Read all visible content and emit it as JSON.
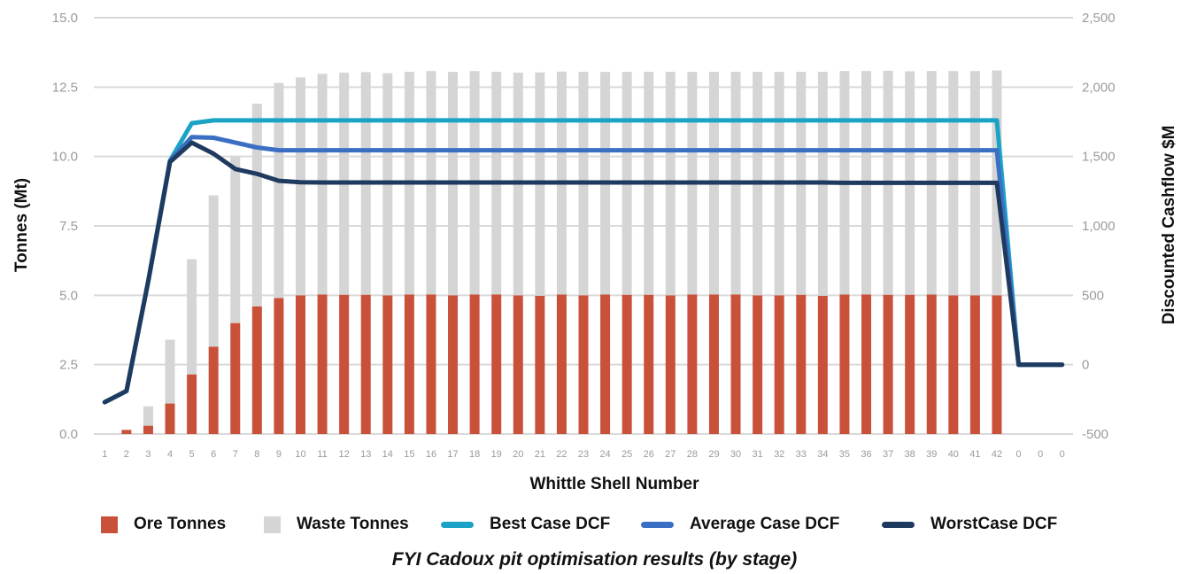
{
  "caption": "FYI Cadoux pit optimisation results (by stage)",
  "chart_data": {
    "type": "bar",
    "xlabel": "Whittle Shell Number",
    "ylabel": "Tonnes (Mt)",
    "y2label": "Discounted Cashflow $M",
    "ylim": [
      0,
      15
    ],
    "y2lim": [
      -500,
      2500
    ],
    "yticks": [
      "0.0",
      "2.5",
      "5.0",
      "7.5",
      "10.0",
      "12.5",
      "15.0"
    ],
    "y2ticks": [
      "-500",
      "0",
      "500",
      "1,000",
      "1,500",
      "2,000",
      "2,500"
    ],
    "grid": true,
    "legend_position": "bottom",
    "stacked": true,
    "categories": [
      "1",
      "2",
      "3",
      "4",
      "5",
      "6",
      "7",
      "8",
      "9",
      "10",
      "11",
      "12",
      "13",
      "14",
      "15",
      "16",
      "17",
      "18",
      "19",
      "20",
      "21",
      "22",
      "23",
      "24",
      "25",
      "26",
      "27",
      "28",
      "29",
      "30",
      "31",
      "32",
      "33",
      "34",
      "35",
      "36",
      "37",
      "38",
      "39",
      "40",
      "41",
      "42",
      "0",
      "0",
      "0"
    ],
    "series": [
      {
        "name": "Ore Tonnes",
        "kind": "bar",
        "axis": "left",
        "color": "#c9513a",
        "values": [
          0,
          0.15,
          0.3,
          1.1,
          2.15,
          3.15,
          4.0,
          4.6,
          4.9,
          5.0,
          5.03,
          5.02,
          5.02,
          5.0,
          5.03,
          5.03,
          5.0,
          5.03,
          5.03,
          5.0,
          4.98,
          5.03,
          5.0,
          5.03,
          5.02,
          5.02,
          5.0,
          5.03,
          5.03,
          5.03,
          5.0,
          5.0,
          5.02,
          4.98,
          5.03,
          5.03,
          5.02,
          5.02,
          5.03,
          5.0,
          5.0,
          5.0,
          0,
          0,
          0
        ]
      },
      {
        "name": "Waste Tonnes",
        "kind": "bar",
        "axis": "left",
        "color": "#d5d5d5",
        "values": [
          0,
          0,
          0.7,
          2.3,
          4.15,
          5.45,
          6.0,
          7.3,
          7.75,
          7.85,
          7.95,
          8.0,
          8.02,
          8.0,
          8.02,
          8.05,
          8.05,
          8.05,
          8.02,
          8.02,
          8.05,
          8.03,
          8.05,
          8.02,
          8.03,
          8.03,
          8.05,
          8.02,
          8.02,
          8.02,
          8.05,
          8.05,
          8.03,
          8.07,
          8.05,
          8.05,
          8.07,
          8.05,
          8.05,
          8.08,
          8.08,
          8.1,
          0,
          0,
          0
        ]
      },
      {
        "name": "Best Case DCF",
        "kind": "line",
        "axis": "right",
        "color": "#1ba3c6",
        "values": [
          -270,
          -190,
          600,
          1470,
          1740,
          1760,
          1760,
          1760,
          1760,
          1760,
          1760,
          1760,
          1760,
          1760,
          1760,
          1760,
          1760,
          1760,
          1760,
          1760,
          1760,
          1760,
          1760,
          1760,
          1760,
          1760,
          1760,
          1760,
          1760,
          1760,
          1760,
          1760,
          1760,
          1760,
          1760,
          1760,
          1760,
          1760,
          1760,
          1760,
          1760,
          1760,
          0,
          0,
          0
        ]
      },
      {
        "name": "Average Case DCF",
        "kind": "line",
        "axis": "right",
        "color": "#3b6fc4",
        "values": [
          -270,
          -190,
          600,
          1470,
          1640,
          1635,
          1600,
          1565,
          1545,
          1545,
          1545,
          1545,
          1545,
          1545,
          1545,
          1545,
          1545,
          1545,
          1545,
          1545,
          1545,
          1545,
          1545,
          1545,
          1545,
          1545,
          1545,
          1545,
          1545,
          1545,
          1545,
          1545,
          1545,
          1545,
          1545,
          1545,
          1545,
          1545,
          1545,
          1545,
          1545,
          1545,
          0,
          0,
          0
        ]
      },
      {
        "name": "WorstCase DCF",
        "kind": "line",
        "axis": "right",
        "color": "#1f3a5f",
        "values": [
          -270,
          -190,
          600,
          1460,
          1600,
          1520,
          1410,
          1375,
          1325,
          1315,
          1313,
          1313,
          1313,
          1313,
          1313,
          1313,
          1313,
          1313,
          1313,
          1313,
          1313,
          1313,
          1313,
          1313,
          1313,
          1313,
          1313,
          1313,
          1313,
          1313,
          1313,
          1313,
          1313,
          1313,
          1310,
          1310,
          1310,
          1310,
          1310,
          1310,
          1310,
          1310,
          0,
          0,
          0
        ]
      }
    ]
  }
}
